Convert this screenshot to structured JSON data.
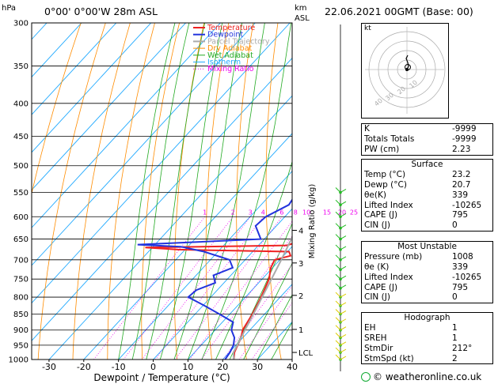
{
  "header": {
    "location": "0°00' 0°00'W 28m ASL",
    "datetime": "22.06.2021 00GMT (Base: 00)",
    "hpa_label": "hPa",
    "km_label": "km",
    "asl_label": "ASL"
  },
  "chart_data": {
    "type": "line",
    "title": "0°00' 0°00'W 28m ASL",
    "xlabel": "Dewpoint / Temperature (°C)",
    "ylabel": "hPa",
    "right_label": "Mixing Ratio (g/kg)",
    "xlim": [
      -35,
      40
    ],
    "x_ticks": [
      -30,
      -20,
      -10,
      0,
      10,
      20,
      30,
      40
    ],
    "pressure_levels": [
      300,
      350,
      400,
      450,
      500,
      550,
      600,
      650,
      700,
      750,
      800,
      850,
      900,
      950,
      1000
    ],
    "km_ticks": [
      {
        "label": "4",
        "p": 630
      },
      {
        "label": "3",
        "p": 708
      },
      {
        "label": "2",
        "p": 795
      },
      {
        "label": "1",
        "p": 898
      },
      {
        "label": "LCL",
        "p": 975
      }
    ],
    "mixing_ratio_labels": [
      "1",
      "2",
      "3",
      "4",
      "6",
      "8",
      "10",
      "15",
      "20",
      "25"
    ],
    "legend": [
      "Temperature",
      "Dewpoint",
      "Parcel Trajectory",
      "Dry Adiabat",
      "Wet Adiabat",
      "Isotherm",
      "Mixing Ratio"
    ],
    "legend_position": "top-center",
    "colors": {
      "temperature": "#ee2222",
      "dewpoint": "#2233dd",
      "parcel": "#aaaaaa",
      "dry_adiabat": "#ff8c00",
      "wet_adiabat": "#22aa22",
      "isotherm": "#22aaff",
      "mixing_ratio": "#ee00ee"
    },
    "series": [
      {
        "name": "Temperature",
        "points": [
          [
            1000,
            23.2
          ],
          [
            975,
            21.5
          ],
          [
            950,
            20.5
          ],
          [
            925,
            19.5
          ],
          [
            900,
            17.9
          ],
          [
            850,
            16.5
          ],
          [
            800,
            14.5
          ],
          [
            750,
            12.0
          ],
          [
            720,
            9.5
          ],
          [
            700,
            8.5
          ],
          [
            690,
            12.0
          ],
          [
            680,
            10.5
          ],
          [
            675,
            -22.0
          ],
          [
            670,
            -32.0
          ],
          [
            665,
            8.2
          ],
          [
            660,
            9.5
          ],
          [
            650,
            9.0
          ],
          [
            600,
            7.0
          ],
          [
            550,
            3.5
          ]
        ]
      },
      {
        "name": "Dewpoint",
        "points": [
          [
            1000,
            20.7
          ],
          [
            975,
            20.2
          ],
          [
            950,
            19.3
          ],
          [
            925,
            17.6
          ],
          [
            900,
            14.7
          ],
          [
            875,
            13.1
          ],
          [
            850,
            7.0
          ],
          [
            825,
            0.5
          ],
          [
            800,
            -6.5
          ],
          [
            780,
            -6.0
          ],
          [
            760,
            -2.5
          ],
          [
            740,
            -5.0
          ],
          [
            720,
            -1.5
          ],
          [
            700,
            -4.5
          ],
          [
            680,
            -14.0
          ],
          [
            668,
            -22.0
          ],
          [
            663,
            -35.0
          ],
          [
            650,
            -1.0
          ],
          [
            620,
            -6.0
          ],
          [
            600,
            -5.5
          ],
          [
            575,
            -2.0
          ],
          [
            550,
            -3.0
          ]
        ]
      },
      {
        "name": "Parcel Trajectory",
        "points": [
          [
            1000,
            23.2
          ],
          [
            975,
            21.2
          ],
          [
            950,
            20.4
          ],
          [
            900,
            18.6
          ],
          [
            850,
            16.8
          ],
          [
            800,
            14.8
          ],
          [
            750,
            12.7
          ],
          [
            700,
            10.4
          ],
          [
            650,
            7.8
          ],
          [
            600,
            4.8
          ],
          [
            550,
            1.5
          ],
          [
            500,
            -2.3
          ],
          [
            450,
            -6.7
          ],
          [
            400,
            -11.9
          ],
          [
            350,
            -18.2
          ],
          [
            300,
            -25.9
          ]
        ]
      }
    ]
  },
  "hodograph": {
    "unit_label": "kt",
    "ring_labels": [
      "10",
      "20",
      "30",
      "40"
    ]
  },
  "indices": [
    {
      "label": "K",
      "value": "-9999"
    },
    {
      "label": "Totals Totals",
      "value": "-9999"
    },
    {
      "label": "PW (cm)",
      "value": "2.23"
    }
  ],
  "surface": {
    "title": "Surface",
    "rows": [
      {
        "label": "Temp (°C)",
        "value": "23.2"
      },
      {
        "label": "Dewp (°C)",
        "value": "20.7"
      },
      {
        "label": "θe(K)",
        "value": "339"
      },
      {
        "label": "Lifted Index",
        "value": "-10265"
      },
      {
        "label": "CAPE (J)",
        "value": "795"
      },
      {
        "label": "CIN (J)",
        "value": "0"
      }
    ]
  },
  "most_unstable": {
    "title": "Most Unstable",
    "rows": [
      {
        "label": "Pressure (mb)",
        "value": "1008"
      },
      {
        "label": "θe (K)",
        "value": "339"
      },
      {
        "label": "Lifted Index",
        "value": "-10265"
      },
      {
        "label": "CAPE (J)",
        "value": "795"
      },
      {
        "label": "CIN (J)",
        "value": "0"
      }
    ]
  },
  "hodograph_table": {
    "title": "Hodograph",
    "rows": [
      {
        "label": "EH",
        "value": "1"
      },
      {
        "label": "SREH",
        "value": "1"
      },
      {
        "label": "StmDir",
        "value": "212°"
      },
      {
        "label": "StmSpd (kt)",
        "value": "2"
      }
    ]
  },
  "footer": {
    "credit": "© weatheronline.co.uk"
  }
}
